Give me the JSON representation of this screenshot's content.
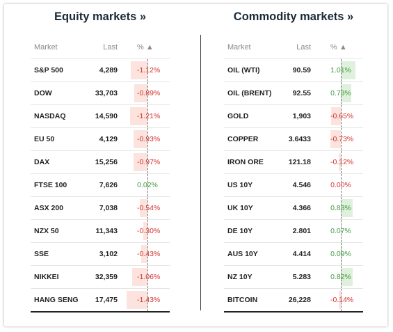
{
  "equity": {
    "title": "Equity markets »",
    "headers": {
      "market": "Market",
      "last": "Last",
      "pct": "% ▲"
    },
    "rows": [
      {
        "market": "S&P 500",
        "last": "4,289",
        "change": "-1.12%",
        "value": -1.12
      },
      {
        "market": "DOW",
        "last": "33,703",
        "change": "-0.89%",
        "value": -0.89
      },
      {
        "market": "NASDAQ",
        "last": "14,590",
        "change": "-1.21%",
        "value": -1.21
      },
      {
        "market": "EU 50",
        "last": "4,129",
        "change": "-0.93%",
        "value": -0.93
      },
      {
        "market": "DAX",
        "last": "15,256",
        "change": "-0.97%",
        "value": -0.97
      },
      {
        "market": "FTSE 100",
        "last": "7,626",
        "change": "0.02%",
        "value": 0.02
      },
      {
        "market": "ASX 200",
        "last": "7,038",
        "change": "-0.54%",
        "value": -0.54
      },
      {
        "market": "NZX 50",
        "last": "11,343",
        "change": "-0.30%",
        "value": -0.3
      },
      {
        "market": "SSE",
        "last": "3,102",
        "change": "-0.43%",
        "value": -0.43
      },
      {
        "market": "NIKKEI",
        "last": "32,359",
        "change": "-1.06%",
        "value": -1.06
      },
      {
        "market": "HANG SENG",
        "last": "17,475",
        "change": "-1.43%",
        "value": -1.43
      }
    ]
  },
  "commodity": {
    "title": "Commodity markets »",
    "headers": {
      "market": "Market",
      "last": "Last",
      "pct": "% ▲"
    },
    "rows": [
      {
        "market": "OIL (WTI)",
        "last": "90.59",
        "change": "1.01%",
        "value": 1.01
      },
      {
        "market": "OIL (BRENT)",
        "last": "92.55",
        "change": "0.73%",
        "value": 0.73
      },
      {
        "market": "GOLD",
        "last": "1,903",
        "change": "-0.65%",
        "value": -0.65
      },
      {
        "market": "COPPER",
        "last": "3.6433",
        "change": "-0.73%",
        "value": -0.73
      },
      {
        "market": "IRON ORE",
        "last": "121.18",
        "change": "-0.12%",
        "value": -0.12
      },
      {
        "market": "US 10Y",
        "last": "4.546",
        "change": "0.00%",
        "value": 0.0
      },
      {
        "market": "UK 10Y",
        "last": "4.366",
        "change": "0.83%",
        "value": 0.83
      },
      {
        "market": "DE 10Y",
        "last": "2.801",
        "change": "0.07%",
        "value": 0.07
      },
      {
        "market": "AUS 10Y",
        "last": "4.414",
        "change": "0.09%",
        "value": 0.09
      },
      {
        "market": "NZ 10Y",
        "last": "5.283",
        "change": "0.82%",
        "value": 0.82
      },
      {
        "market": "BITCOIN",
        "last": "26,228",
        "change": "-0.14%",
        "value": -0.14
      }
    ]
  },
  "colors": {
    "positive_text": "#3f9a3f",
    "negative_text": "#d0312d",
    "neutral_text": "#d0312d"
  }
}
